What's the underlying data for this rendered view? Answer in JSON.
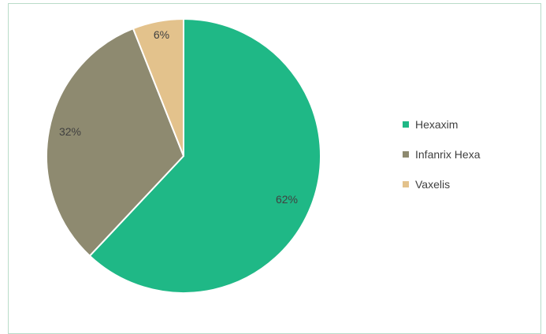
{
  "chart_data": {
    "type": "pie",
    "title": "",
    "start_angle_deg": -21.6,
    "slices": [
      {
        "label": "Hexaxim",
        "value": 62,
        "display": "62%",
        "color": "#1fb886"
      },
      {
        "label": "Infanrix Hexa",
        "value": 32,
        "display": "32%",
        "color": "#8e8a70"
      },
      {
        "label": "Vaxelis",
        "value": 6,
        "display": "6%",
        "color": "#e3c28c"
      }
    ],
    "legend_position": "right"
  }
}
